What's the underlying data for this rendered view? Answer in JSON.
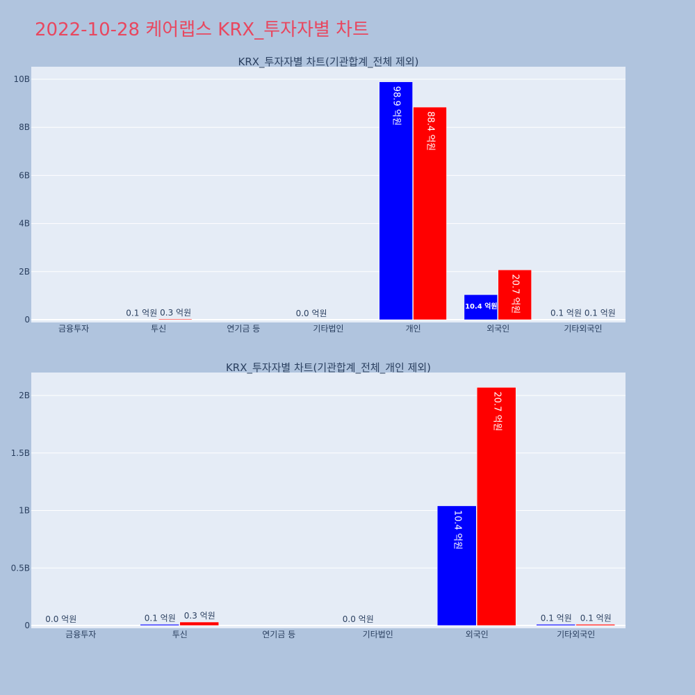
{
  "page": {
    "title": "2022-10-28 케어랩스 KRX_투자자별 차트"
  },
  "colors": {
    "page_background": "#b0c4de",
    "plot_background": "#e5ecf6",
    "title": "#e8475f",
    "buy": "#0000ff",
    "sell": "#ff0000",
    "text": "#2a3f5f"
  },
  "chart_data": [
    {
      "type": "bar",
      "title": "KRX_투자자별 차트(기관합계_전체 제외)",
      "categories": [
        "금융투자",
        "투신",
        "연기금 등",
        "기타법인",
        "개인",
        "외국인",
        "기타외국인"
      ],
      "ylim": [
        0,
        10000000000
      ],
      "yticks": [
        {
          "value": 0,
          "label": "0"
        },
        {
          "value": 2000000000,
          "label": "2B"
        },
        {
          "value": 4000000000,
          "label": "4B"
        },
        {
          "value": 6000000000,
          "label": "6B"
        },
        {
          "value": 8000000000,
          "label": "8B"
        },
        {
          "value": 10000000000,
          "label": "10B"
        }
      ],
      "grid": true,
      "legend": "none",
      "series": [
        {
          "color": "#0000ff",
          "values": [
            0,
            10000000,
            0,
            0,
            9890000000,
            1040000000,
            10000000
          ],
          "labels": [
            "",
            "0.1 억원",
            "",
            "0.0 억원",
            "98.9 억원",
            "10.4 억원",
            "0.1 억원"
          ]
        },
        {
          "color": "#ff0000",
          "values": [
            0,
            30000000,
            0,
            0,
            8840000000,
            2070000000,
            10000000
          ],
          "labels": [
            "",
            "0.3 억원",
            "",
            "",
            "88.4 억원",
            "20.7 억원",
            "0.1 억원"
          ]
        }
      ]
    },
    {
      "type": "bar",
      "title": "KRX_투자자별 차트(기관합계_전체_개인 제외)",
      "categories": [
        "금융투자",
        "투신",
        "연기금 등",
        "기타법인",
        "외국인",
        "기타외국인"
      ],
      "ylim": [
        0,
        2200000000
      ],
      "yticks": [
        {
          "value": 0,
          "label": "0"
        },
        {
          "value": 500000000,
          "label": "0.5B"
        },
        {
          "value": 1000000000,
          "label": "1B"
        },
        {
          "value": 1500000000,
          "label": "1.5B"
        },
        {
          "value": 2000000000,
          "label": "2B"
        }
      ],
      "grid": true,
      "legend": "none",
      "series": [
        {
          "color": "#0000ff",
          "values": [
            0,
            10000000,
            0,
            0,
            1040000000,
            10000000
          ],
          "labels": [
            "0.0 억원",
            "0.1 억원",
            "",
            "0.0 억원",
            "10.4 억원",
            "0.1 억원"
          ]
        },
        {
          "color": "#ff0000",
          "values": [
            0,
            30000000,
            0,
            0,
            2070000000,
            10000000
          ],
          "labels": [
            "",
            "0.3 억원",
            "",
            "",
            "20.7 억원",
            "0.1 억원"
          ]
        }
      ]
    }
  ]
}
